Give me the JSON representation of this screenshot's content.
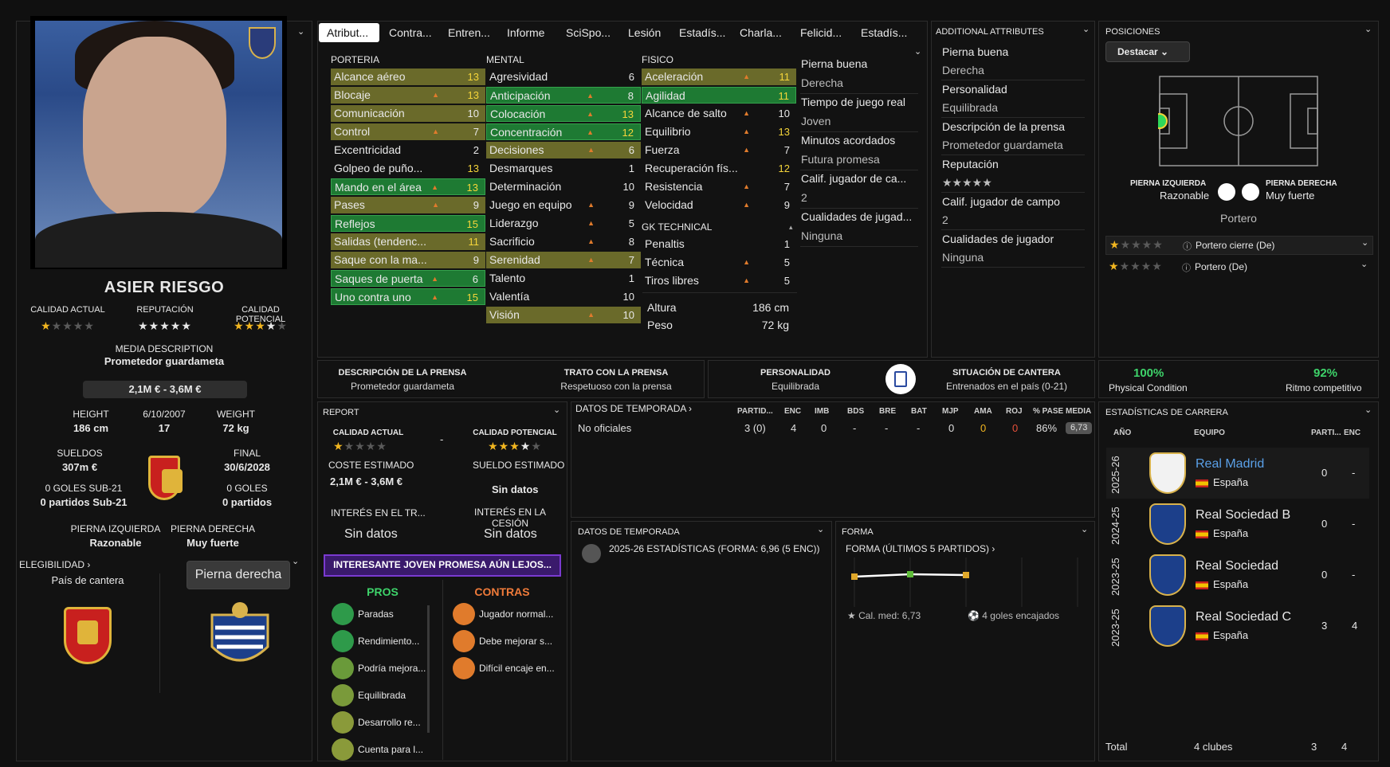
{
  "player": {
    "name": "ASIER RIESGO",
    "labels": {
      "current": "CALIDAD ACTUAL",
      "reputation": "REPUTACIÓN",
      "potential": "CALIDAD POTENCIAL"
    },
    "current_stars": 1,
    "reputation_stars": 5,
    "potential_stars": 3.5,
    "media_title": "MEDIA DESCRIPTION",
    "media_value": "Prometedor guardameta",
    "value": "2,1M € - 3,6M €",
    "height_label": "HEIGHT",
    "height": "186 cm",
    "dob": "6/10/2007",
    "age": "17",
    "weight_label": "WEIGHT",
    "weight": "72 kg",
    "wages_label": "SUELDOS",
    "wages": "307m €",
    "end_label": "FINAL",
    "end": "30/6/2028",
    "u21_goals": "0 GOLES SUB-21",
    "u21_matches": "0 partidos Sub-21",
    "goals": "0 GOLES",
    "matches": "0 partidos",
    "left_foot_label": "PIERNA IZQUIERDA",
    "left_foot": "Razonable",
    "right_foot_label": "PIERNA DERECHA",
    "right_foot": "Muy fuerte",
    "eligibility": "ELEGIBILIDAD",
    "origin_country": "País de cantera",
    "foot_button": "Pierna derecha"
  },
  "tabs": [
    "Atribut...",
    "Contra...",
    "Entren...",
    "Informe",
    "SciSpo...",
    "Lesión",
    "Estadís...",
    "Charla...",
    "Felicid...",
    "Estadís..."
  ],
  "attributes": {
    "porteria_title": "PORTERIA",
    "porteria": [
      {
        "n": "Alcance aéreo",
        "v": "13",
        "hl": "olive",
        "arrow": false,
        "y": true
      },
      {
        "n": "Blocaje",
        "v": "13",
        "hl": "olive",
        "arrow": true,
        "y": true
      },
      {
        "n": "Comunicación",
        "v": "10",
        "hl": "olive",
        "arrow": false,
        "y": false
      },
      {
        "n": "Control",
        "v": "7",
        "hl": "olive",
        "arrow": true,
        "y": false
      },
      {
        "n": "Excentricidad",
        "v": "2",
        "hl": "",
        "arrow": false,
        "y": false
      },
      {
        "n": "Golpeo de puño...",
        "v": "13",
        "hl": "",
        "arrow": false,
        "y": true
      },
      {
        "n": "Mando en el área",
        "v": "13",
        "hl": "green",
        "arrow": true,
        "y": true
      },
      {
        "n": "Pases",
        "v": "9",
        "hl": "olive",
        "arrow": true,
        "y": false
      },
      {
        "n": "Reflejos",
        "v": "15",
        "hl": "green",
        "arrow": false,
        "y": true
      },
      {
        "n": "Salidas (tendenc...",
        "v": "11",
        "hl": "olive",
        "arrow": false,
        "y": true
      },
      {
        "n": "Saque con la ma...",
        "v": "9",
        "hl": "olive",
        "arrow": false,
        "y": false
      },
      {
        "n": "Saques de puerta",
        "v": "6",
        "hl": "green",
        "arrow": true,
        "y": false
      },
      {
        "n": "Uno contra uno",
        "v": "15",
        "hl": "green",
        "arrow": true,
        "y": true
      }
    ],
    "mental_title": "MENTAL",
    "mental": [
      {
        "n": "Agresividad",
        "v": "6",
        "hl": "",
        "arrow": false,
        "y": false
      },
      {
        "n": "Anticipación",
        "v": "8",
        "hl": "green",
        "arrow": true,
        "y": false
      },
      {
        "n": "Colocación",
        "v": "13",
        "hl": "green",
        "arrow": true,
        "y": true
      },
      {
        "n": "Concentración",
        "v": "12",
        "hl": "green",
        "arrow": true,
        "y": true
      },
      {
        "n": "Decisiones",
        "v": "6",
        "hl": "olive",
        "arrow": true,
        "y": false
      },
      {
        "n": "Desmarques",
        "v": "1",
        "hl": "",
        "arrow": false,
        "y": false
      },
      {
        "n": "Determinación",
        "v": "10",
        "hl": "",
        "arrow": false,
        "y": false
      },
      {
        "n": "Juego en equipo",
        "v": "9",
        "hl": "",
        "arrow": true,
        "y": false
      },
      {
        "n": "Liderazgo",
        "v": "5",
        "hl": "",
        "arrow": true,
        "y": false
      },
      {
        "n": "Sacrificio",
        "v": "8",
        "hl": "",
        "arrow": true,
        "y": false
      },
      {
        "n": "Serenidad",
        "v": "7",
        "hl": "olive",
        "arrow": true,
        "y": false
      },
      {
        "n": "Talento",
        "v": "1",
        "hl": "",
        "arrow": false,
        "y": false
      },
      {
        "n": "Valentía",
        "v": "10",
        "hl": "",
        "arrow": false,
        "y": false
      },
      {
        "n": "Visión",
        "v": "10",
        "hl": "olive",
        "arrow": true,
        "y": false
      }
    ],
    "fisico_title": "FISICO",
    "fisico": [
      {
        "n": "Aceleración",
        "v": "11",
        "hl": "olive",
        "arrow": true,
        "y": true
      },
      {
        "n": "Agilidad",
        "v": "11",
        "hl": "green",
        "arrow": false,
        "y": true
      },
      {
        "n": "Alcance de salto",
        "v": "10",
        "hl": "",
        "arrow": true,
        "y": false
      },
      {
        "n": "Equilibrio",
        "v": "13",
        "hl": "",
        "arrow": true,
        "y": true
      },
      {
        "n": "Fuerza",
        "v": "7",
        "hl": "",
        "arrow": true,
        "y": false
      },
      {
        "n": "Recuperación fís...",
        "v": "12",
        "hl": "",
        "arrow": false,
        "y": true
      },
      {
        "n": "Resistencia",
        "v": "7",
        "hl": "",
        "arrow": true,
        "y": false
      },
      {
        "n": "Velocidad",
        "v": "9",
        "hl": "",
        "arrow": true,
        "y": false
      }
    ],
    "gk_title": "GK TECHNICAL",
    "gk": [
      {
        "n": "Penaltis",
        "v": "1",
        "hl": "",
        "arrow": false,
        "y": false
      },
      {
        "n": "Técnica",
        "v": "5",
        "hl": "",
        "arrow": true,
        "y": false
      },
      {
        "n": "Tiros libres",
        "v": "5",
        "hl": "",
        "arrow": true,
        "y": false
      }
    ],
    "height_label": "Altura",
    "height": "186 cm",
    "weight_label": "Peso",
    "weight": "72 kg",
    "extra": [
      {
        "k": "Pierna buena",
        "v": "Derecha"
      },
      {
        "k": "Tiempo de juego real",
        "v": "Joven"
      },
      {
        "k": "Minutos acordados",
        "v": "Futura promesa"
      },
      {
        "k": "Calif. jugador de ca...",
        "v": "2"
      },
      {
        "k": "Cualidades de jugad...",
        "v": "Ninguna"
      }
    ]
  },
  "additional": {
    "title": "ADDITIONAL ATTRIBUTES",
    "items": [
      {
        "k": "Pierna buena",
        "v": "Derecha"
      },
      {
        "k": "Personalidad",
        "v": "Equilibrada"
      },
      {
        "k": "Descripción de la prensa",
        "v": "Prometedor guardameta"
      },
      {
        "k": "Reputación",
        "v": "★★★★★"
      },
      {
        "k": "Calif. jugador de campo",
        "v": "2"
      },
      {
        "k": "Cualidades de jugador",
        "v": "Ninguna"
      }
    ]
  },
  "positions": {
    "title": "POSICIONES",
    "button": "Destacar",
    "left_label": "PIERNA IZQUIERDA",
    "left_val": "Razonable",
    "right_label": "PIERNA DERECHA",
    "right_val": "Muy fuerte",
    "position": "Portero",
    "roles": [
      {
        "stars": 1,
        "name": "Portero cierre (De)"
      },
      {
        "stars": 1,
        "name": "Portero (De)"
      }
    ]
  },
  "press": {
    "desc_label": "DESCRIPCIÓN DE LA PRENSA",
    "desc": "Prometedor guardameta",
    "treat_label": "TRATO CON LA PRENSA",
    "treat": "Respetuoso con la prensa",
    "pers_label": "PERSONALIDAD",
    "pers": "Equilibrada",
    "youth_label": "SITUACIÓN DE CANTERA",
    "youth": "Entrenados en el país (0-21)"
  },
  "condition": {
    "phys": "100%",
    "phys_label": "Physical Condition",
    "ritmo": "92%",
    "ritmo_label": "Ritmo competitivo"
  },
  "report": {
    "title": "REPORT",
    "ca_label": "CALIDAD ACTUAL",
    "ca_stars": 1,
    "dash": "-",
    "pa_label": "CALIDAD POTENCIAL",
    "pa_stars": 3.5,
    "cost_label": "COSTE ESTIMADO",
    "cost": "2,1M € - 3,6M €",
    "wage_label": "SUELDO ESTIMADO",
    "wage": "Sin datos",
    "int_tr_label": "INTERÉS EN EL TR...",
    "int_tr": "Sin datos",
    "int_ces_label": "INTERÉS EN LA CESIÓN",
    "int_ces": "Sin datos",
    "banner": "INTERESANTE JOVEN PROMESA AÚN LEJOS...",
    "pros_title": "PROS",
    "pros": [
      "Paradas",
      "Rendimiento...",
      "Podría mejora...",
      "Equilibrada",
      "Desarrollo re...",
      "Cuenta para l..."
    ],
    "cons_title": "CONTRAS",
    "cons": [
      "Jugador normal...",
      "Debe mejorar s...",
      "Difícil encaje en..."
    ]
  },
  "season": {
    "title": "DATOS DE TEMPORADA",
    "headers": [
      "PARTID...",
      "ENC",
      "IMB",
      "BDS",
      "BRE",
      "BAT",
      "MJP",
      "AMA",
      "ROJ",
      "% PASE",
      "MEDIA"
    ],
    "row_label": "No oficiales",
    "row": [
      "3 (0)",
      "4",
      "0",
      "-",
      "-",
      "-",
      "0",
      "0",
      "0",
      "86%",
      "6,73"
    ]
  },
  "season2": {
    "title": "DATOS DE TEMPORADA",
    "line": "2025-26 ESTADÍSTICAS (FORMA: 6,96 (5 ENC))"
  },
  "form": {
    "title": "FORMA",
    "subtitle": "FORMA (ÚLTIMOS 5 PARTIDOS)",
    "avg": "Cal. med: 6,73",
    "conceded": "4 goles encajados"
  },
  "career": {
    "title": "ESTADÍSTICAS DE CARRERA",
    "h_year": "AÑO",
    "h_team": "EQUIPO",
    "h_apps": "PARTI...",
    "h_enc": "ENC",
    "rows": [
      {
        "year": "2025-26",
        "team": "Real Madrid",
        "country": "España",
        "apps": "0",
        "enc": "-",
        "link": true
      },
      {
        "year": "2024-25",
        "team": "Real Sociedad B",
        "country": "España",
        "apps": "0",
        "enc": "-",
        "link": false
      },
      {
        "year": "2023-25",
        "team": "Real Sociedad",
        "country": "España",
        "apps": "0",
        "enc": "-",
        "link": false
      },
      {
        "year": "2023-25",
        "team": "Real Sociedad C",
        "country": "España",
        "apps": "3",
        "enc": "4",
        "link": false
      }
    ],
    "total_label": "Total",
    "total_clubs": "4 clubes",
    "total_apps": "3",
    "total_enc": "4"
  }
}
